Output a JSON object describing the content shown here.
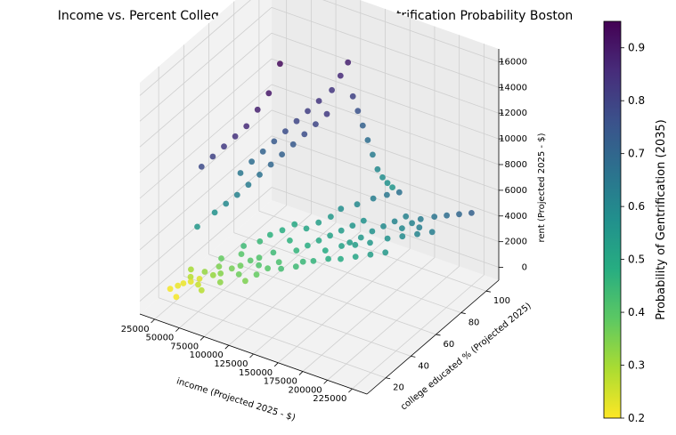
{
  "chart_data": {
    "type": "scatter",
    "projection": "3d",
    "title": "Income vs. Percent College Educated vs Rent and Gentrification Probability Boston",
    "xlabel": "income (Projected 2025 - $)",
    "ylabel": "college educated % (Projected 2025)",
    "zlabel": "rent (Projected 2025 - $)",
    "colorbar_label": "Probability of Gentrification (2035)",
    "colormap": "viridis_r",
    "xlim": [
      10000,
      240000
    ],
    "ylim": [
      5,
      110
    ],
    "zlim": [
      -1000,
      17000
    ],
    "clim": [
      0.2,
      0.95
    ],
    "x_ticks": [
      "25000",
      "50000",
      "75000",
      "100000",
      "125000",
      "150000",
      "175000",
      "200000",
      "225000"
    ],
    "y_ticks": [
      "20",
      "40",
      "60",
      "80",
      "100"
    ],
    "z_ticks": [
      "0",
      "2000",
      "4000",
      "6000",
      "8000",
      "10000",
      "12000",
      "14000",
      "16000"
    ],
    "cb_ticks": [
      "0.2",
      "0.3",
      "0.4",
      "0.5",
      "0.6",
      "0.7",
      "0.8",
      "0.9"
    ],
    "grid": true,
    "points": [
      [
        28000,
        15,
        600,
        0.21
      ],
      [
        32000,
        18,
        700,
        0.22
      ],
      [
        35000,
        20,
        800,
        0.22
      ],
      [
        40000,
        22,
        900,
        0.23
      ],
      [
        45000,
        25,
        1000,
        0.24
      ],
      [
        38000,
        12,
        500,
        0.21
      ],
      [
        50000,
        20,
        1100,
        0.26
      ],
      [
        30000,
        30,
        900,
        0.3
      ],
      [
        55000,
        28,
        1300,
        0.32
      ],
      [
        60000,
        30,
        1400,
        0.34
      ],
      [
        65000,
        35,
        1500,
        0.36
      ],
      [
        70000,
        38,
        1600,
        0.37
      ],
      [
        48000,
        40,
        1400,
        0.38
      ],
      [
        75000,
        42,
        1800,
        0.4
      ],
      [
        80000,
        45,
        1900,
        0.41
      ],
      [
        85000,
        30,
        1500,
        0.35
      ],
      [
        90000,
        35,
        1700,
        0.38
      ],
      [
        95000,
        40,
        1900,
        0.4
      ],
      [
        100000,
        45,
        2100,
        0.42
      ],
      [
        58000,
        50,
        1800,
        0.44
      ],
      [
        68000,
        55,
        2000,
        0.45
      ],
      [
        72000,
        60,
        2200,
        0.47
      ],
      [
        88000,
        50,
        2100,
        0.44
      ],
      [
        105000,
        55,
        2300,
        0.46
      ],
      [
        110000,
        60,
        2400,
        0.48
      ],
      [
        115000,
        65,
        2500,
        0.5
      ],
      [
        120000,
        70,
        2600,
        0.52
      ],
      [
        125000,
        75,
        2700,
        0.54
      ],
      [
        130000,
        80,
        2800,
        0.56
      ],
      [
        135000,
        85,
        2900,
        0.57
      ],
      [
        140000,
        70,
        2600,
        0.53
      ],
      [
        145000,
        75,
        2700,
        0.55
      ],
      [
        150000,
        80,
        2900,
        0.57
      ],
      [
        155000,
        85,
        3000,
        0.59
      ],
      [
        160000,
        90,
        3100,
        0.61
      ],
      [
        165000,
        95,
        3200,
        0.62
      ],
      [
        170000,
        88,
        3000,
        0.6
      ],
      [
        175000,
        92,
        3200,
        0.62
      ],
      [
        180000,
        95,
        3400,
        0.64
      ],
      [
        190000,
        98,
        3600,
        0.66
      ],
      [
        200000,
        100,
        3800,
        0.68
      ],
      [
        210000,
        102,
        4000,
        0.7
      ],
      [
        220000,
        104,
        4200,
        0.72
      ],
      [
        185000,
        90,
        3300,
        0.63
      ],
      [
        112000,
        85,
        3200,
        0.58
      ],
      [
        122000,
        90,
        3400,
        0.6
      ],
      [
        132000,
        95,
        3700,
        0.63
      ],
      [
        142000,
        98,
        4000,
        0.65
      ],
      [
        152000,
        100,
        4300,
        0.67
      ],
      [
        96000,
        70,
        2500,
        0.51
      ],
      [
        102000,
        75,
        2700,
        0.53
      ],
      [
        108000,
        80,
        2900,
        0.55
      ],
      [
        78000,
        65,
        2300,
        0.48
      ],
      [
        84000,
        70,
        2500,
        0.5
      ],
      [
        62000,
        45,
        1700,
        0.4
      ],
      [
        52000,
        35,
        1300,
        0.35
      ],
      [
        44000,
        30,
        1100,
        0.32
      ],
      [
        36000,
        25,
        900,
        0.28
      ],
      [
        92000,
        60,
        2300,
        0.47
      ],
      [
        118000,
        50,
        2200,
        0.45
      ],
      [
        128000,
        60,
        2500,
        0.49
      ],
      [
        138000,
        65,
        2700,
        0.52
      ],
      [
        148000,
        68,
        2800,
        0.53
      ],
      [
        158000,
        72,
        2900,
        0.55
      ],
      [
        168000,
        78,
        3000,
        0.57
      ],
      [
        178000,
        82,
        3100,
        0.59
      ],
      [
        188000,
        86,
        3200,
        0.61
      ],
      [
        198000,
        90,
        3300,
        0.63
      ],
      [
        86000,
        40,
        1900,
        0.41
      ],
      [
        76000,
        32,
        1600,
        0.37
      ],
      [
        66000,
        25,
        1300,
        0.33
      ],
      [
        56000,
        18,
        1000,
        0.28
      ],
      [
        106000,
        42,
        2000,
        0.43
      ],
      [
        116000,
        46,
        2100,
        0.44
      ],
      [
        126000,
        52,
        2300,
        0.46
      ],
      [
        136000,
        56,
        2400,
        0.48
      ],
      [
        146000,
        58,
        2500,
        0.49
      ],
      [
        156000,
        62,
        2600,
        0.51
      ],
      [
        166000,
        66,
        2700,
        0.53
      ],
      [
        176000,
        70,
        2800,
        0.55
      ],
      [
        30000,
        35,
        3800,
        0.55
      ],
      [
        35000,
        45,
        4200,
        0.57
      ],
      [
        40000,
        50,
        4600,
        0.6
      ],
      [
        45000,
        55,
        5000,
        0.62
      ],
      [
        50000,
        60,
        5500,
        0.64
      ],
      [
        55000,
        65,
        6000,
        0.67
      ],
      [
        60000,
        70,
        6500,
        0.7
      ],
      [
        65000,
        75,
        7000,
        0.72
      ],
      [
        70000,
        80,
        7500,
        0.74
      ],
      [
        75000,
        85,
        8000,
        0.77
      ],
      [
        80000,
        90,
        8500,
        0.79
      ],
      [
        85000,
        95,
        9000,
        0.82
      ],
      [
        28000,
        40,
        8000,
        0.78
      ],
      [
        33000,
        45,
        8500,
        0.8
      ],
      [
        38000,
        50,
        9000,
        0.82
      ],
      [
        43000,
        55,
        9500,
        0.84
      ],
      [
        48000,
        60,
        10000,
        0.86
      ],
      [
        53000,
        65,
        11000,
        0.88
      ],
      [
        58000,
        70,
        12000,
        0.9
      ],
      [
        63000,
        75,
        14000,
        0.93
      ],
      [
        90000,
        95,
        11000,
        0.83
      ],
      [
        95000,
        98,
        12000,
        0.86
      ],
      [
        100000,
        100,
        13000,
        0.88
      ],
      [
        105000,
        100,
        10500,
        0.8
      ],
      [
        110000,
        100,
        9500,
        0.76
      ],
      [
        115000,
        100,
        8500,
        0.72
      ],
      [
        120000,
        100,
        7500,
        0.68
      ],
      [
        125000,
        100,
        6500,
        0.64
      ],
      [
        130000,
        100,
        5500,
        0.6
      ],
      [
        135000,
        100,
        5000,
        0.58
      ],
      [
        140000,
        100,
        4700,
        0.57
      ],
      [
        145000,
        100,
        4500,
        0.56
      ],
      [
        42000,
        60,
        6200,
        0.65
      ],
      [
        47000,
        65,
        6800,
        0.68
      ],
      [
        52000,
        70,
        7300,
        0.71
      ],
      [
        57000,
        75,
        7800,
        0.74
      ],
      [
        62000,
        80,
        8300,
        0.77
      ],
      [
        67000,
        85,
        8800,
        0.79
      ],
      [
        72000,
        90,
        9300,
        0.81
      ],
      [
        77000,
        95,
        9800,
        0.83
      ]
    ]
  }
}
